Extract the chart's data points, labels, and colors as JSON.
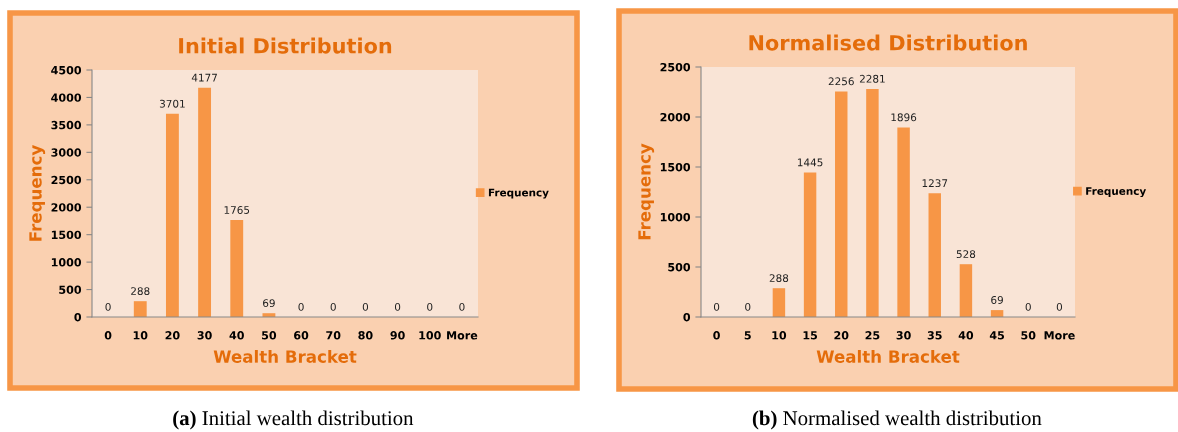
{
  "chart_data": [
    {
      "type": "bar",
      "title": "Initial Distribution",
      "xlabel": "Wealth Bracket",
      "ylabel": "Frequency",
      "categories": [
        "0",
        "10",
        "20",
        "30",
        "40",
        "50",
        "60",
        "70",
        "80",
        "90",
        "100",
        "More"
      ],
      "series": [
        {
          "name": "Frequency",
          "color": "#f79646",
          "values": [
            0,
            288,
            3701,
            4177,
            1765,
            69,
            0,
            0,
            0,
            0,
            0,
            0
          ]
        }
      ],
      "ylim": [
        0,
        4500
      ],
      "yticks": [
        0,
        500,
        1000,
        1500,
        2000,
        2500,
        3000,
        3500,
        4000,
        4500
      ],
      "data_labels": true,
      "legend": "right",
      "grid": false,
      "annotations": [
        "(a) Initial wealth distribution"
      ]
    },
    {
      "type": "bar",
      "title": "Normalised Distribution",
      "xlabel": "Wealth Bracket",
      "ylabel": "Frequency",
      "categories": [
        "0",
        "5",
        "10",
        "15",
        "20",
        "25",
        "30",
        "35",
        "40",
        "45",
        "50",
        "More"
      ],
      "series": [
        {
          "name": "Frequency",
          "color": "#f79646",
          "values": [
            0,
            0,
            288,
            1445,
            2256,
            2281,
            1896,
            1237,
            528,
            69,
            0,
            0
          ]
        }
      ],
      "ylim": [
        0,
        2500
      ],
      "yticks": [
        0,
        500,
        1000,
        1500,
        2000,
        2500
      ],
      "data_labels": true,
      "legend": "right",
      "grid": false,
      "annotations": [
        "(b) Normalised wealth distribution"
      ]
    }
  ]
}
